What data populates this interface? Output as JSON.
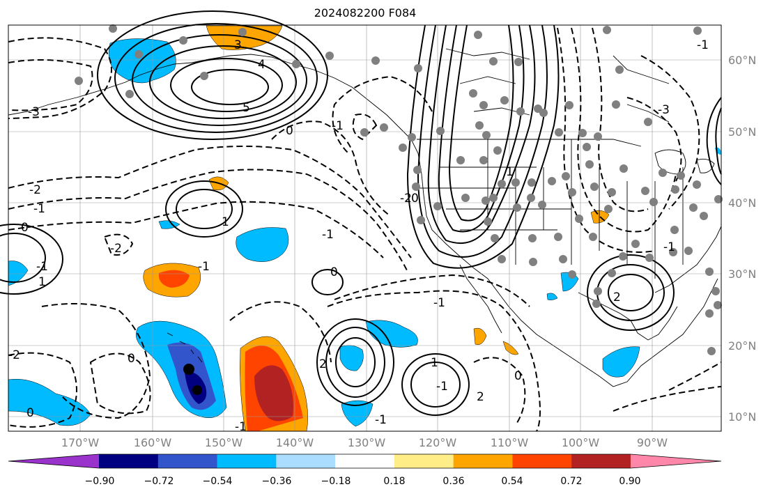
{
  "title": "2024082200 F084",
  "lat_labels": [
    "60°N",
    "50°N",
    "40°N",
    "30°N",
    "20°N",
    "10°N"
  ],
  "lon_labels": [
    "170°W",
    "160°W",
    "150°W",
    "140°W",
    "130°W",
    "120°W",
    "110°W",
    "100°W",
    "90°W"
  ],
  "colorbar": {
    "colors": [
      "#9933cc",
      "#000080",
      "#3355cc",
      "#00bbff",
      "#aaddff",
      "#ffffff",
      "#ffee88",
      "#ffa500",
      "#ff4400",
      "#b22222",
      "#ff88aa"
    ],
    "labels": [
      "−0.90",
      "−0.72",
      "−0.54",
      "−0.36",
      "−0.18",
      "0.18",
      "0.36",
      "0.54",
      "0.72",
      "0.90"
    ]
  },
  "contour_labels": [
    "3",
    "4",
    "5",
    "-3",
    "-2",
    "-1",
    "0",
    "-1",
    "1",
    "-2",
    "-1",
    "0",
    "-1",
    "2",
    "-2",
    "1",
    "-1",
    "0",
    "-1",
    "0",
    "-2",
    "1",
    "-1",
    "0",
    "2",
    "-1",
    "1",
    "-3",
    "-1",
    "0",
    "-1",
    "0",
    "2",
    "-1"
  ]
}
